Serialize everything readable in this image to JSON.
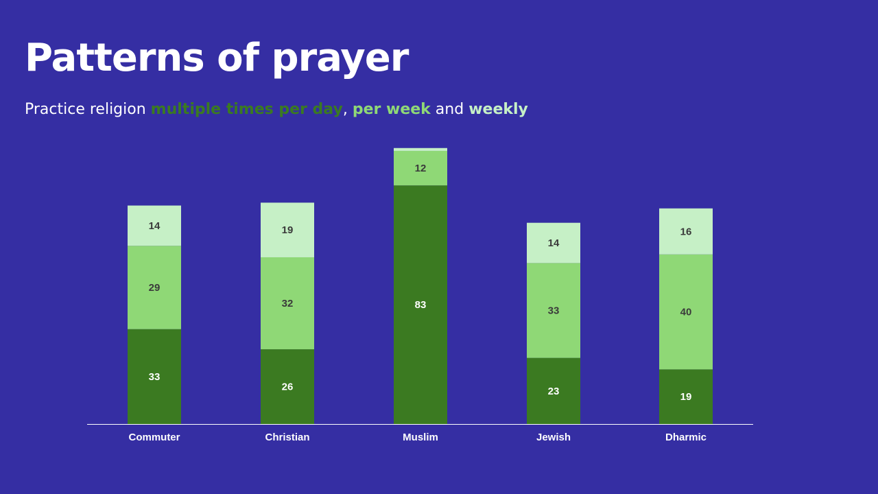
{
  "title": "Patterns of prayer",
  "subtitle": {
    "prefix": "Practice religion ",
    "part1": "multiple times per day",
    "sep1": ", ",
    "part2": "per week",
    "sep2": " and ",
    "part3": "weekly"
  },
  "colors": {
    "background": "#352ea3",
    "daily": "#3b7a21",
    "per_week": "#8fd876",
    "weekly": "#c6f0c6",
    "axis": "#ffffff",
    "label_dark": "#3a3a3a",
    "label_light": "#ffffff"
  },
  "chart_data": {
    "type": "bar",
    "stacked": true,
    "categories": [
      "Commuter",
      "Christian",
      "Muslim",
      "Jewish",
      "Dharmic"
    ],
    "series": [
      {
        "name": "multiple times per day",
        "values": [
          33,
          26,
          83,
          23,
          19
        ]
      },
      {
        "name": "per week",
        "values": [
          29,
          32,
          12,
          33,
          40
        ]
      },
      {
        "name": "weekly",
        "values": [
          14,
          19,
          1,
          14,
          16
        ]
      }
    ],
    "data_labels": [
      [
        "33",
        "26",
        "83",
        "23",
        "19"
      ],
      [
        "29",
        "32",
        "12",
        "33",
        "40"
      ],
      [
        "14",
        "19",
        "",
        "14",
        "16"
      ]
    ],
    "title": "",
    "xlabel": "",
    "ylabel": "",
    "grid": false,
    "legend": "none"
  }
}
